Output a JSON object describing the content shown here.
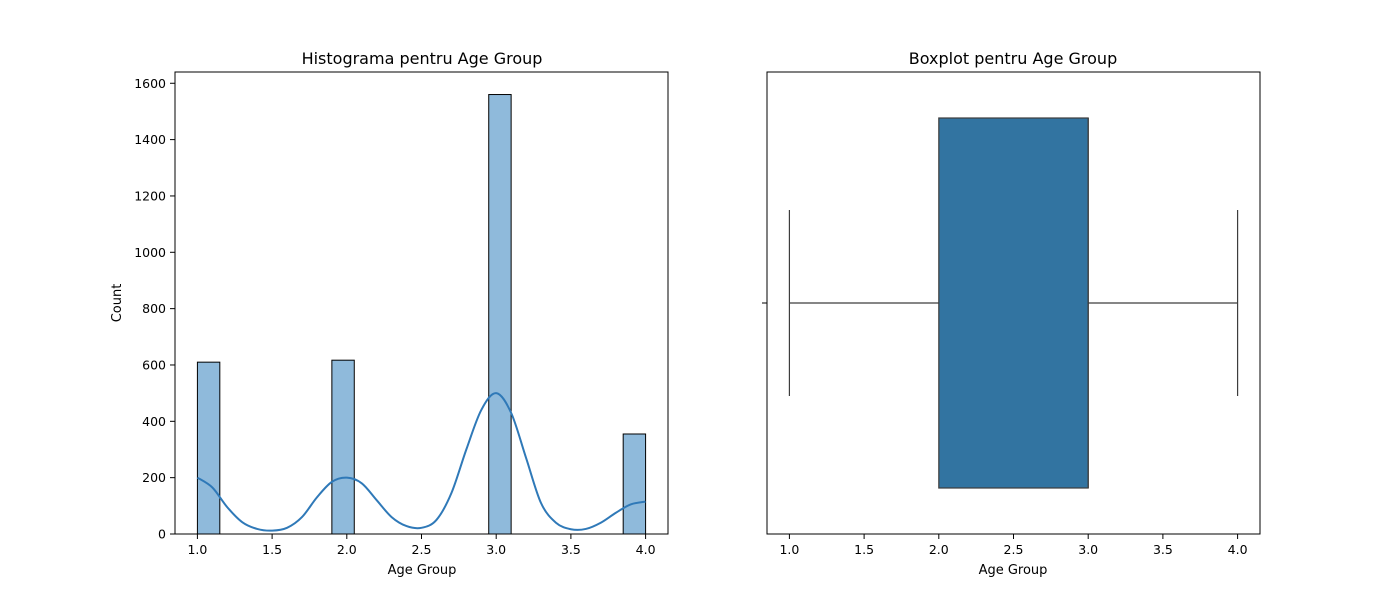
{
  "chart_data": [
    {
      "type": "bar",
      "title": "Histograma pentru Age Group",
      "xlabel": "Age Group",
      "ylabel": "Count",
      "xlim": [
        0.85,
        4.15
      ],
      "ylim": [
        0,
        1640
      ],
      "xticks": [
        1.0,
        1.5,
        2.0,
        2.5,
        3.0,
        3.5,
        4.0
      ],
      "xtick_labels": [
        "1.0",
        "1.5",
        "2.0",
        "2.5",
        "3.0",
        "3.5",
        "4.0"
      ],
      "yticks": [
        0,
        200,
        400,
        600,
        800,
        1000,
        1200,
        1400,
        1600
      ],
      "ytick_labels": [
        "0",
        "200",
        "400",
        "600",
        "800",
        "1000",
        "1200",
        "1400",
        "1600"
      ],
      "bin_width": 0.15,
      "bars": [
        {
          "x_start": 1.0,
          "value": 610
        },
        {
          "x_start": 1.9,
          "value": 617
        },
        {
          "x_start": 2.95,
          "value": 1560
        },
        {
          "x_start": 3.85,
          "value": 355
        }
      ],
      "kde": {
        "x": [
          1.0,
          1.1,
          1.2,
          1.3,
          1.4,
          1.5,
          1.6,
          1.7,
          1.8,
          1.9,
          2.0,
          2.1,
          2.2,
          2.3,
          2.4,
          2.5,
          2.6,
          2.7,
          2.8,
          2.9,
          3.0,
          3.1,
          3.2,
          3.3,
          3.4,
          3.5,
          3.6,
          3.7,
          3.8,
          3.9,
          4.0
        ],
        "y": [
          200,
          165,
          95,
          42,
          18,
          12,
          22,
          60,
          130,
          185,
          200,
          180,
          120,
          60,
          28,
          22,
          50,
          145,
          300,
          440,
          500,
          430,
          270,
          110,
          40,
          17,
          18,
          40,
          75,
          105,
          115
        ]
      },
      "bar_color": "#8fbadb",
      "kde_color": "#2f79b8",
      "grid": false
    },
    {
      "type": "box",
      "title": "Boxplot pentru Age Group",
      "xlabel": "Age Group",
      "xlim": [
        0.85,
        4.15
      ],
      "xticks": [
        1.0,
        1.5,
        2.0,
        2.5,
        3.0,
        3.5,
        4.0
      ],
      "xtick_labels": [
        "1.0",
        "1.5",
        "2.0",
        "2.5",
        "3.0",
        "3.5",
        "4.0"
      ],
      "whisker_low": 1.0,
      "q1": 2.0,
      "median": 3.0,
      "q3": 3.0,
      "whisker_high": 4.0,
      "box_color": "#3274a1",
      "grid": false
    }
  ]
}
